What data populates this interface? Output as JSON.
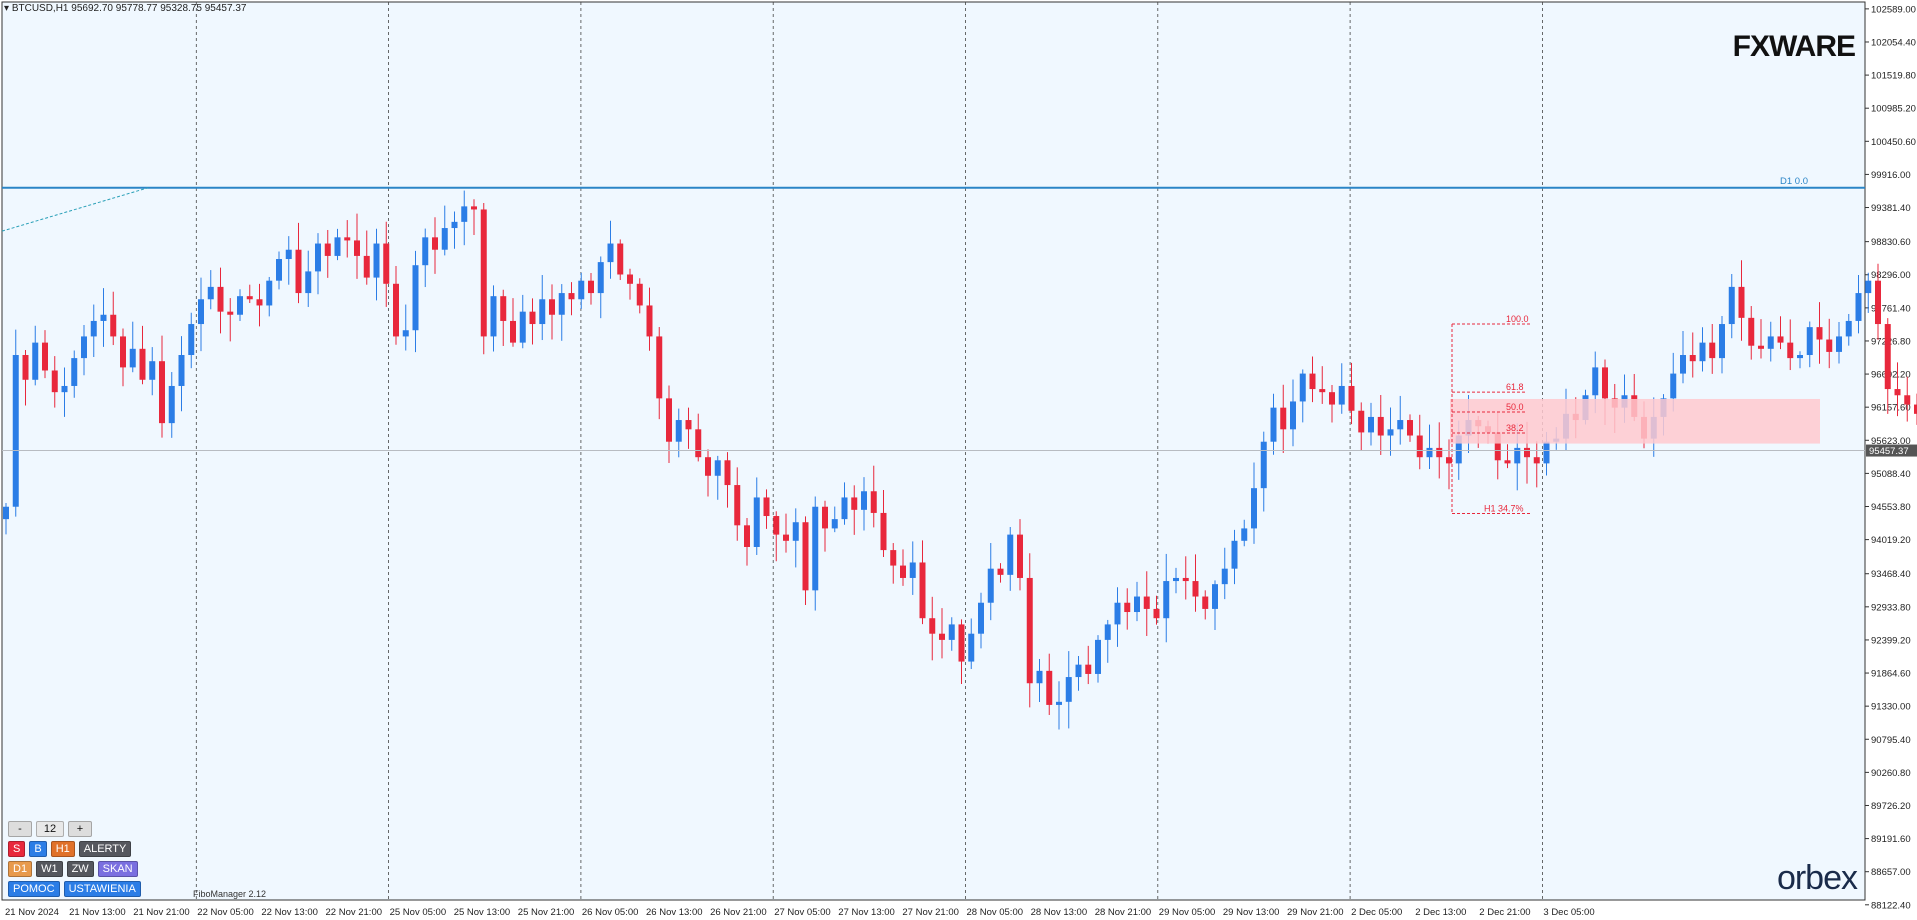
{
  "header": {
    "symbol_line": "BTCUSD,H1  95692.70 95778.77 95328.75 95457.37"
  },
  "logos": {
    "brand": "FXWARE",
    "broker": "orbex"
  },
  "indicator": {
    "name": "FiboManager 2.12"
  },
  "panel": {
    "minus": "-",
    "value": "12",
    "plus": "+",
    "row2": [
      "S",
      "B",
      "H1",
      "ALERTY"
    ],
    "row3": [
      "D1",
      "W1",
      "ZW",
      "SKAN"
    ],
    "row4": [
      "POMOC",
      "USTAWIENIA"
    ]
  },
  "colors": {
    "background": "#f0f8ff",
    "bull": "#2b7de6",
    "bear": "#e8283c",
    "resistance_line": "#2b85c7",
    "fib": "#e8283c",
    "zone": "#ffc9cf",
    "grid": "#9aa0a6"
  },
  "chart_data": {
    "type": "candlestick",
    "title": "BTCUSD,H1",
    "ohlc_last": {
      "open": 95692.7,
      "high": 95778.77,
      "low": 95328.75,
      "close": 95457.37
    },
    "current_price": "95457.37",
    "ylim": [
      88200,
      102700
    ],
    "y_ticks": [
      "102589.00",
      "102054.40",
      "101519.80",
      "100985.20",
      "100450.60",
      "99916.00",
      "99381.40",
      "98830.60",
      "98296.00",
      "97761.40",
      "97226.80",
      "96692.20",
      "96157.60",
      "95623.00",
      "95088.40",
      "94553.80",
      "94019.20",
      "93468.40",
      "92933.80",
      "92399.20",
      "91864.60",
      "91330.00",
      "90795.40",
      "90260.80",
      "89726.20",
      "89191.60",
      "88657.00",
      "88122.40"
    ],
    "x_ticks": [
      "21 Nov 2024",
      "21 Nov 13:00",
      "21 Nov 21:00",
      "22 Nov 05:00",
      "22 Nov 13:00",
      "22 Nov 21:00",
      "25 Nov 05:00",
      "25 Nov 13:00",
      "25 Nov 21:00",
      "26 Nov 05:00",
      "26 Nov 13:00",
      "26 Nov 21:00",
      "27 Nov 05:00",
      "27 Nov 13:00",
      "27 Nov 21:00",
      "28 Nov 05:00",
      "28 Nov 13:00",
      "28 Nov 21:00",
      "29 Nov 05:00",
      "29 Nov 13:00",
      "29 Nov 21:00",
      "2 Dec 05:00",
      "2 Dec 13:00",
      "2 Dec 21:00",
      "3 Dec 05:00"
    ],
    "resistance": {
      "label": "D1 0.0",
      "price": 99700
    },
    "fib": {
      "levels": [
        {
          "label": "100.0",
          "price": 97500
        },
        {
          "label": "61.8",
          "price": 96400
        },
        {
          "label": "50.0",
          "price": 96080
        },
        {
          "label": "38.2",
          "price": 95740
        },
        {
          "label": "H1 34.7%",
          "price": 94440
        }
      ]
    },
    "zone": {
      "from": 95570,
      "to": 96290
    },
    "grid": "vertical dashed",
    "closes": [
      94550,
      97000,
      96600,
      97200,
      96750,
      96400,
      96500,
      96950,
      97300,
      97550,
      97650,
      97300,
      96800,
      97100,
      96600,
      96900,
      95900,
      96500,
      97000,
      97500,
      97900,
      98100,
      97700,
      97650,
      97950,
      97900,
      97800,
      98200,
      98550,
      98700,
      98000,
      98350,
      98800,
      98600,
      98900,
      98850,
      98600,
      98250,
      98800,
      98150,
      97300,
      97400,
      98450,
      98900,
      98700,
      99050,
      99150,
      99400,
      99350,
      97300,
      97950,
      97550,
      97200,
      97700,
      97500,
      97900,
      97650,
      98000,
      97900,
      98200,
      98000,
      98500,
      98800,
      98300,
      98150,
      97800,
      97300,
      96300,
      95600,
      95950,
      95800,
      95350,
      95050,
      95300,
      94900,
      94250,
      93900,
      94700,
      94400,
      94100,
      94000,
      94300,
      93200,
      94550,
      94200,
      94350,
      94700,
      94500,
      94800,
      94450,
      93850,
      93600,
      93400,
      93650,
      92750,
      92500,
      92400,
      92650,
      92050,
      92500,
      93000,
      93550,
      93450,
      94100,
      93400,
      91700,
      91900,
      91350,
      91400,
      91800,
      92000,
      91850,
      92400,
      92650,
      93000,
      92850,
      93100,
      92900,
      92750,
      93350,
      93400,
      93350,
      93100,
      92900,
      93300,
      93550,
      94000,
      94200,
      94850,
      95600,
      96150,
      95800,
      96250,
      96700,
      96450,
      96400,
      96200,
      96500,
      96100,
      95750,
      96000,
      95700,
      95800,
      95950,
      95700,
      95350,
      95500,
      95350,
      95250,
      95700,
      95950,
      95850,
      95750,
      95300,
      95250,
      95500,
      95350,
      95250,
      95600,
      95650,
      96050,
      95950,
      96350,
      96800,
      96300,
      96150,
      96350,
      96000,
      95650,
      96000,
      96300,
      96700,
      97000,
      96900,
      97200,
      96950,
      97500,
      98100,
      97600,
      97150,
      97100,
      97300,
      97200,
      96950,
      97000,
      97450,
      97250,
      97050,
      97300,
      97550,
      98000,
      98200,
      97500,
      96450,
      96350,
      96200,
      96050,
      96050,
      95550,
      94950,
      95450,
      95150,
      95350,
      95100,
      94950,
      95300,
      95650,
      96400,
      97300,
      96800,
      96100,
      94900,
      95350,
      95700,
      95850,
      96250,
      95800,
      95650,
      95500,
      95900,
      96150,
      96200,
      96000,
      96250,
      95650,
      95400
    ],
    "opens_note": "open of each candle equals previous close"
  }
}
